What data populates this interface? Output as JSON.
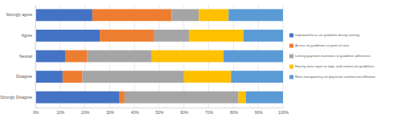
{
  "chart_data": {
    "type": "bar",
    "orientation": "horizontal",
    "stacked": true,
    "grid": true,
    "legend": "right",
    "categories": [
      "Strongly agree",
      "Agree",
      "Neutral",
      "Disagree",
      "Strongly Disagree"
    ],
    "series": [
      {
        "name": "Improved focus on guideline during training",
        "color": "#4472c4",
        "values": [
          23,
          26,
          12,
          11,
          34
        ]
      },
      {
        "name": "Access to guidelines at point of care",
        "color": "#ed7d31",
        "values": [
          32,
          22,
          9,
          8,
          2
        ]
      },
      {
        "name": "Linking payment incentives to guideline adherence",
        "color": "#a5a5a5",
        "values": [
          11,
          14,
          26,
          41,
          46
        ]
      },
      {
        "name": "Having more input on topic and content on guidelines",
        "color": "#ffc000",
        "values": [
          12,
          22,
          29,
          19,
          3
        ]
      },
      {
        "name": "More transparency on physician commercial affiliation",
        "color": "#5b9bd5",
        "values": [
          22,
          16,
          24,
          21,
          15
        ]
      }
    ],
    "xlim": [
      0,
      100
    ],
    "xticks": [
      {
        "value": 0,
        "label": "0%"
      },
      {
        "value": 10,
        "label": "10%"
      },
      {
        "value": 20,
        "label": "20%"
      },
      {
        "value": 30,
        "label": "30%"
      },
      {
        "value": 40,
        "label": "40%"
      },
      {
        "value": 50,
        "label": "50%"
      },
      {
        "value": 60,
        "label": "60%"
      },
      {
        "value": 70,
        "label": "70%"
      },
      {
        "value": 80,
        "label": "80%"
      },
      {
        "value": 90,
        "label": "90%"
      },
      {
        "value": 100,
        "label": "100%"
      }
    ]
  }
}
